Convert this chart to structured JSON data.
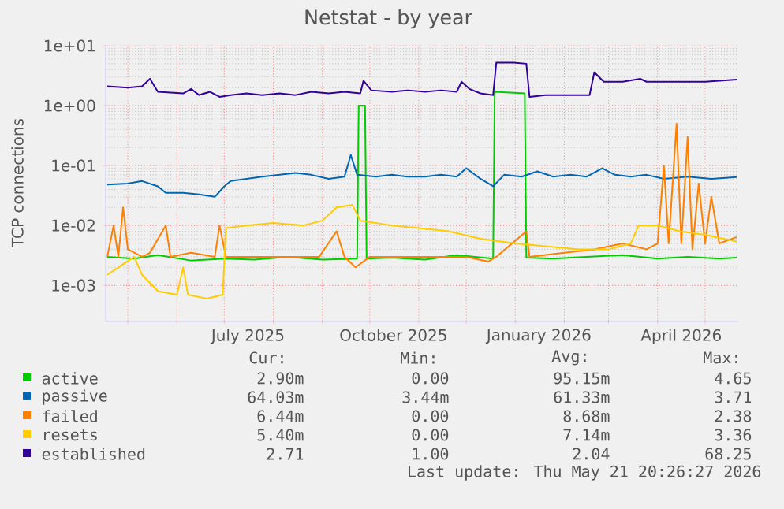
{
  "chart_data": {
    "type": "line",
    "title": "Netstat - by year",
    "ylabel": "TCP connections",
    "log": true,
    "grid": true,
    "legend": "bottom",
    "xlim": [
      "2025-04-17",
      "2026-05-22"
    ],
    "xticks": [
      {
        "value": "2025-05-01",
        "label": null
      },
      {
        "value": "2025-06-01",
        "label": null
      },
      {
        "value": "2025-07-01",
        "label": null
      },
      {
        "value": "2025-08-01",
        "label": null
      },
      {
        "value": "2025-09-01",
        "label": null
      },
      {
        "value": "2025-10-01",
        "label": null
      },
      {
        "value": "2025-11-01",
        "label": null
      },
      {
        "value": "2025-12-01",
        "label": null
      },
      {
        "value": "2026-01-01",
        "label": null
      },
      {
        "value": "2026-02-01",
        "label": null
      },
      {
        "value": "2026-03-01",
        "label": null
      },
      {
        "value": "2026-04-01",
        "label": null
      },
      {
        "value": "2026-05-01",
        "label": null
      },
      {
        "value": "2025-07-16",
        "label": "July 2025"
      },
      {
        "value": "2025-10-16",
        "label": "October 2025"
      },
      {
        "value": "2026-01-16",
        "label": "January 2026"
      },
      {
        "value": "2026-04-16",
        "label": "April 2026"
      }
    ],
    "ylim": [
      0.00025,
      10
    ],
    "yticks": [
      {
        "value": 0.001,
        "label": "1e-03"
      },
      {
        "value": 0.01,
        "label": "1e-02"
      },
      {
        "value": 0.1,
        "label": "1e-01"
      },
      {
        "value": 1,
        "label": "1e+00"
      },
      {
        "value": 10,
        "label": "1e+01"
      }
    ],
    "series": [
      {
        "name": "active",
        "color": "#00cc00",
        "x": [
          "2025-04-18",
          "2025-05-05",
          "2025-05-20",
          "2025-06-10",
          "2025-07-01",
          "2025-07-20",
          "2025-08-10",
          "2025-09-01",
          "2025-09-23",
          "2025-09-24",
          "2025-09-28",
          "2025-09-29",
          "2025-10-15",
          "2025-11-05",
          "2025-11-25",
          "2025-12-18",
          "2025-12-19",
          "2026-01-07",
          "2026-01-08",
          "2026-01-25",
          "2026-02-15",
          "2026-03-10",
          "2026-04-01",
          "2026-04-20",
          "2026-05-10",
          "2026-05-21"
        ],
        "values": [
          0.003,
          0.0028,
          0.0032,
          0.0026,
          0.0028,
          0.0027,
          0.003,
          0.0027,
          0.0028,
          1.0,
          1.0,
          0.0028,
          0.0029,
          0.0027,
          0.0032,
          0.0028,
          1.7,
          1.6,
          0.0029,
          0.0028,
          0.003,
          0.0032,
          0.0028,
          0.003,
          0.0028,
          0.0029
        ]
      },
      {
        "name": "passive",
        "color": "#0066b3",
        "x": [
          "2025-04-18",
          "2025-05-01",
          "2025-05-10",
          "2025-05-20",
          "2025-05-25",
          "2025-06-05",
          "2025-06-15",
          "2025-06-25",
          "2025-07-01",
          "2025-07-05",
          "2025-07-15",
          "2025-07-25",
          "2025-08-05",
          "2025-08-15",
          "2025-08-25",
          "2025-09-05",
          "2025-09-15",
          "2025-09-19",
          "2025-09-23",
          "2025-10-05",
          "2025-10-15",
          "2025-10-25",
          "2025-11-05",
          "2025-11-15",
          "2025-11-25",
          "2025-12-01",
          "2025-12-10",
          "2025-12-18",
          "2025-12-25",
          "2026-01-05",
          "2026-01-15",
          "2026-01-25",
          "2026-02-05",
          "2026-02-15",
          "2026-02-25",
          "2026-03-05",
          "2026-03-15",
          "2026-03-25",
          "2026-04-05",
          "2026-04-20",
          "2026-05-05",
          "2026-05-21"
        ],
        "values": [
          0.048,
          0.05,
          0.055,
          0.045,
          0.035,
          0.035,
          0.033,
          0.03,
          0.045,
          0.055,
          0.06,
          0.065,
          0.07,
          0.075,
          0.07,
          0.06,
          0.065,
          0.15,
          0.07,
          0.065,
          0.07,
          0.065,
          0.065,
          0.07,
          0.065,
          0.09,
          0.06,
          0.045,
          0.07,
          0.065,
          0.08,
          0.065,
          0.07,
          0.065,
          0.09,
          0.07,
          0.065,
          0.07,
          0.06,
          0.065,
          0.06,
          0.064
        ]
      },
      {
        "name": "failed",
        "color": "#ff8000",
        "x": [
          "2025-04-18",
          "2025-04-22",
          "2025-04-25",
          "2025-04-28",
          "2025-05-01",
          "2025-05-10",
          "2025-05-15",
          "2025-05-25",
          "2025-05-28",
          "2025-06-10",
          "2025-06-25",
          "2025-06-28",
          "2025-07-02",
          "2025-07-20",
          "2025-08-10",
          "2025-08-30",
          "2025-09-10",
          "2025-09-15",
          "2025-09-22",
          "2025-10-01",
          "2025-11-01",
          "2025-12-01",
          "2025-12-15",
          "2025-12-20",
          "2026-01-08",
          "2026-01-10",
          "2026-02-01",
          "2026-02-20",
          "2026-03-10",
          "2026-03-25",
          "2026-04-01",
          "2026-04-05",
          "2026-04-08",
          "2026-04-13",
          "2026-04-16",
          "2026-04-20",
          "2026-04-23",
          "2026-04-27",
          "2026-05-01",
          "2026-05-05",
          "2026-05-10",
          "2026-05-21"
        ],
        "values": [
          0.003,
          0.01,
          0.003,
          0.02,
          0.004,
          0.003,
          0.0035,
          0.01,
          0.003,
          0.0035,
          0.003,
          0.01,
          0.003,
          0.003,
          0.003,
          0.003,
          0.008,
          0.003,
          0.002,
          0.003,
          0.003,
          0.003,
          0.0025,
          0.003,
          0.008,
          0.003,
          0.0035,
          0.004,
          0.005,
          0.004,
          0.005,
          0.1,
          0.005,
          0.5,
          0.005,
          0.3,
          0.004,
          0.05,
          0.005,
          0.03,
          0.005,
          0.0064
        ]
      },
      {
        "name": "resets",
        "color": "#ffcc00",
        "x": [
          "2025-04-18",
          "2025-04-25",
          "2025-05-05",
          "2025-05-10",
          "2025-05-20",
          "2025-06-01",
          "2025-06-05",
          "2025-06-08",
          "2025-06-20",
          "2025-06-30",
          "2025-07-02",
          "2025-07-15",
          "2025-08-01",
          "2025-08-20",
          "2025-09-01",
          "2025-09-10",
          "2025-09-20",
          "2025-09-25",
          "2025-10-15",
          "2025-11-01",
          "2025-11-20",
          "2025-12-10",
          "2026-01-01",
          "2026-01-20",
          "2026-02-10",
          "2026-03-01",
          "2026-03-15",
          "2026-03-20",
          "2026-04-01",
          "2026-04-15",
          "2026-05-01",
          "2026-05-21"
        ],
        "values": [
          0.0015,
          0.002,
          0.003,
          0.0015,
          0.0008,
          0.0007,
          0.002,
          0.0007,
          0.0006,
          0.0007,
          0.009,
          0.01,
          0.011,
          0.01,
          0.012,
          0.02,
          0.022,
          0.012,
          0.01,
          0.009,
          0.008,
          0.006,
          0.005,
          0.0045,
          0.004,
          0.004,
          0.005,
          0.01,
          0.01,
          0.008,
          0.007,
          0.0054
        ]
      },
      {
        "name": "established",
        "color": "#330099",
        "x": [
          "2025-04-18",
          "2025-05-01",
          "2025-05-10",
          "2025-05-15",
          "2025-05-20",
          "2025-06-05",
          "2025-06-10",
          "2025-06-15",
          "2025-06-22",
          "2025-06-28",
          "2025-07-05",
          "2025-07-15",
          "2025-07-25",
          "2025-08-05",
          "2025-08-15",
          "2025-08-25",
          "2025-09-05",
          "2025-09-15",
          "2025-09-25",
          "2025-09-27",
          "2025-10-02",
          "2025-10-15",
          "2025-10-25",
          "2025-11-05",
          "2025-11-15",
          "2025-11-25",
          "2025-11-28",
          "2025-12-03",
          "2025-12-10",
          "2025-12-18",
          "2025-12-20",
          "2025-12-31",
          "2026-01-08",
          "2026-01-10",
          "2026-01-20",
          "2026-02-01",
          "2026-02-17",
          "2026-02-20",
          "2026-02-26",
          "2026-03-10",
          "2026-03-21",
          "2026-03-25",
          "2026-04-10",
          "2026-05-01",
          "2026-05-21"
        ],
        "values": [
          2.1,
          2.0,
          2.1,
          2.8,
          1.7,
          1.6,
          1.9,
          1.5,
          1.7,
          1.4,
          1.5,
          1.6,
          1.5,
          1.6,
          1.5,
          1.7,
          1.6,
          1.7,
          1.6,
          2.6,
          1.8,
          1.7,
          1.8,
          1.7,
          1.8,
          1.7,
          2.5,
          1.9,
          1.6,
          1.5,
          5.2,
          5.2,
          5.0,
          1.4,
          1.5,
          1.5,
          1.5,
          3.6,
          2.5,
          2.5,
          2.8,
          2.5,
          2.5,
          2.5,
          2.71
        ]
      }
    ],
    "annotations": [
      "Cur:",
      "Min:",
      "Avg:",
      "Max:",
      "2.90m",
      "0.00",
      "95.15m",
      "4.65",
      "64.03m",
      "3.44m",
      "61.33m",
      "3.71",
      "6.44m",
      "0.00",
      "8.68m",
      "2.38",
      "5.40m",
      "0.00",
      "7.14m",
      "3.36",
      "2.71",
      "1.00",
      "2.04",
      "68.25",
      "Last update: Thu May 21 20:26:27 2026"
    ]
  }
}
